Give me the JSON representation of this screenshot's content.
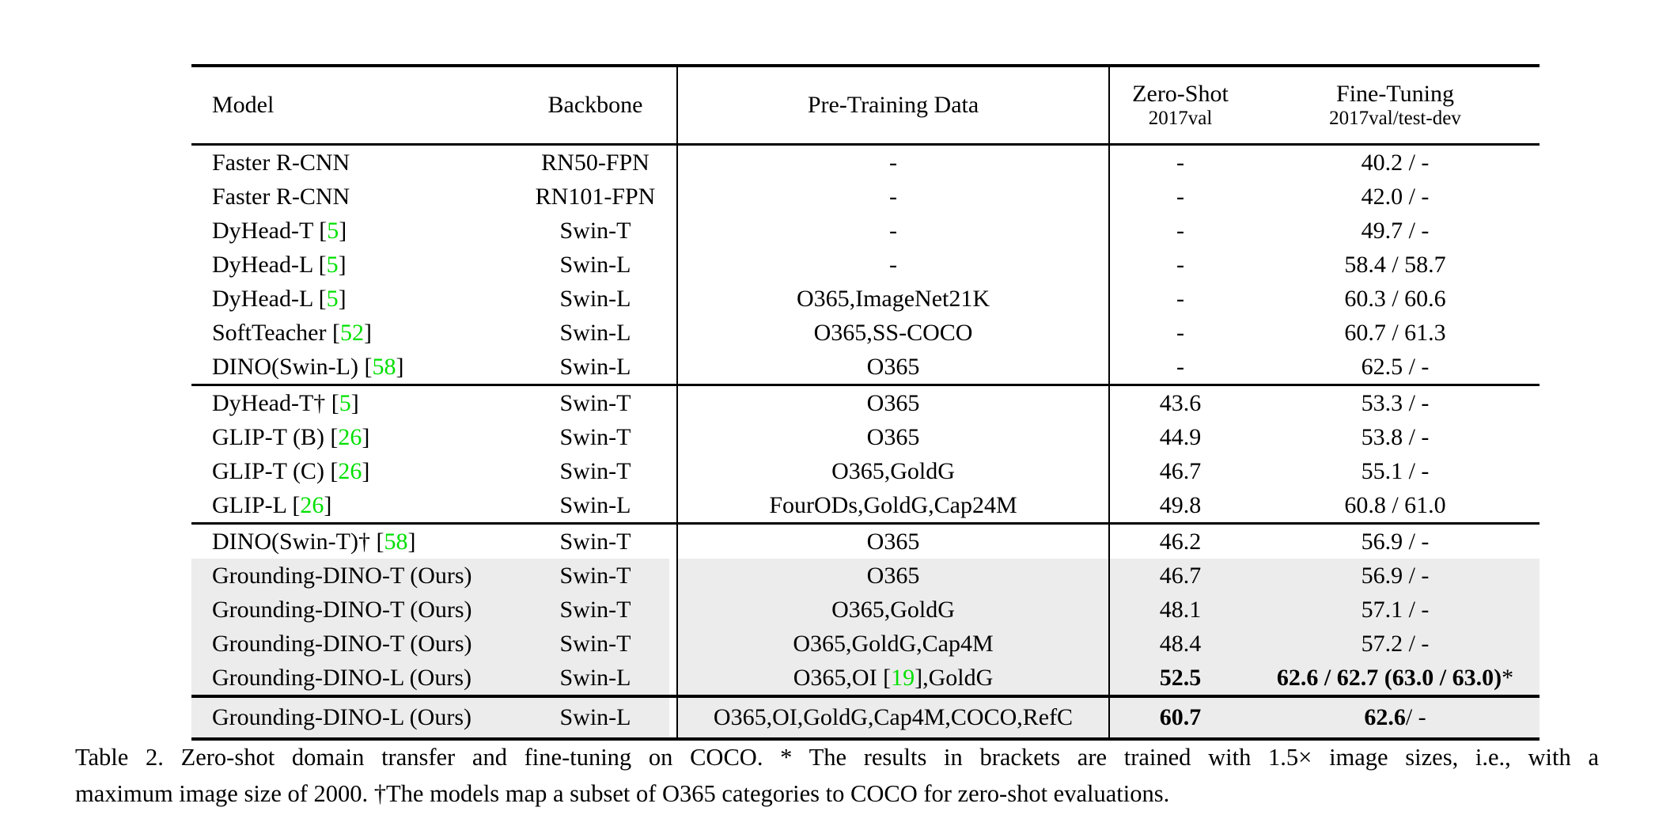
{
  "colors": {
    "cite_green": "#00e000",
    "row_shade": "#ececec",
    "rule_black": "#000000"
  },
  "table": {
    "headers": {
      "model": "Model",
      "backbone": "Backbone",
      "pretrain": "Pre-Training Data",
      "zeroshot_line1": "Zero-Shot",
      "zeroshot_line2": "2017val",
      "finetune_line1": "Fine-Tuning",
      "finetune_line2": "2017val/test-dev"
    },
    "sections": [
      {
        "rows": [
          {
            "model_pre": "Faster R-CNN",
            "model_cite": "",
            "model_post": "",
            "backbone": "RN50-FPN",
            "pre_a": "-",
            "pre_cite": "",
            "pre_b": "",
            "zs": "-",
            "zs_bold": false,
            "ft_bold": "",
            "ft_rest": "40.2 / -",
            "shaded": false
          },
          {
            "model_pre": "Faster R-CNN",
            "model_cite": "",
            "model_post": "",
            "backbone": "RN101-FPN",
            "pre_a": "-",
            "pre_cite": "",
            "pre_b": "",
            "zs": "-",
            "zs_bold": false,
            "ft_bold": "",
            "ft_rest": "42.0 / -",
            "shaded": false
          },
          {
            "model_pre": "DyHead-T [",
            "model_cite": "5",
            "model_post": "]",
            "backbone": "Swin-T",
            "pre_a": "-",
            "pre_cite": "",
            "pre_b": "",
            "zs": "-",
            "zs_bold": false,
            "ft_bold": "",
            "ft_rest": "49.7 / -",
            "shaded": false
          },
          {
            "model_pre": "DyHead-L [",
            "model_cite": "5",
            "model_post": "]",
            "backbone": "Swin-L",
            "pre_a": "-",
            "pre_cite": "",
            "pre_b": "",
            "zs": "-",
            "zs_bold": false,
            "ft_bold": "",
            "ft_rest": "58.4 / 58.7",
            "shaded": false
          },
          {
            "model_pre": "DyHead-L [",
            "model_cite": "5",
            "model_post": "]",
            "backbone": "Swin-L",
            "pre_a": "O365,ImageNet21K",
            "pre_cite": "",
            "pre_b": "",
            "zs": "-",
            "zs_bold": false,
            "ft_bold": "",
            "ft_rest": "60.3 / 60.6",
            "shaded": false
          },
          {
            "model_pre": "SoftTeacher [",
            "model_cite": "52",
            "model_post": "]",
            "backbone": "Swin-L",
            "pre_a": "O365,SS-COCO",
            "pre_cite": "",
            "pre_b": "",
            "zs": "-",
            "zs_bold": false,
            "ft_bold": "",
            "ft_rest": "60.7 / 61.3",
            "shaded": false
          },
          {
            "model_pre": "DINO(Swin-L) [",
            "model_cite": "58",
            "model_post": "]",
            "backbone": "Swin-L",
            "pre_a": "O365",
            "pre_cite": "",
            "pre_b": "",
            "zs": "-",
            "zs_bold": false,
            "ft_bold": "",
            "ft_rest": "62.5 / -",
            "shaded": false
          }
        ]
      },
      {
        "rows": [
          {
            "model_pre": "DyHead-T† [",
            "model_cite": "5",
            "model_post": "]",
            "backbone": "Swin-T",
            "pre_a": "O365",
            "pre_cite": "",
            "pre_b": "",
            "zs": "43.6",
            "zs_bold": false,
            "ft_bold": "",
            "ft_rest": "53.3 / -",
            "shaded": false
          },
          {
            "model_pre": "GLIP-T (B) [",
            "model_cite": "26",
            "model_post": "]",
            "backbone": "Swin-T",
            "pre_a": "O365",
            "pre_cite": "",
            "pre_b": "",
            "zs": "44.9",
            "zs_bold": false,
            "ft_bold": "",
            "ft_rest": "53.8 / -",
            "shaded": false
          },
          {
            "model_pre": "GLIP-T (C) [",
            "model_cite": "26",
            "model_post": "]",
            "backbone": "Swin-T",
            "pre_a": "O365,GoldG",
            "pre_cite": "",
            "pre_b": "",
            "zs": "46.7",
            "zs_bold": false,
            "ft_bold": "",
            "ft_rest": "55.1 / -",
            "shaded": false
          },
          {
            "model_pre": "GLIP-L [",
            "model_cite": "26",
            "model_post": "]",
            "backbone": "Swin-L",
            "pre_a": "FourODs,GoldG,Cap24M",
            "pre_cite": "",
            "pre_b": "",
            "zs": "49.8",
            "zs_bold": false,
            "ft_bold": "",
            "ft_rest": "60.8 / 61.0",
            "shaded": false
          }
        ]
      },
      {
        "rows": [
          {
            "model_pre": "DINO(Swin-T)† [",
            "model_cite": "58",
            "model_post": "]",
            "backbone": "Swin-T",
            "pre_a": "O365",
            "pre_cite": "",
            "pre_b": "",
            "zs": "46.2",
            "zs_bold": false,
            "ft_bold": "",
            "ft_rest": "56.9 / -",
            "shaded": false
          },
          {
            "model_pre": "Grounding-DINO-T (Ours)",
            "model_cite": "",
            "model_post": "",
            "backbone": "Swin-T",
            "pre_a": "O365",
            "pre_cite": "",
            "pre_b": "",
            "zs": "46.7",
            "zs_bold": false,
            "ft_bold": "",
            "ft_rest": "56.9 / -",
            "shaded": true
          },
          {
            "model_pre": "Grounding-DINO-T (Ours)",
            "model_cite": "",
            "model_post": "",
            "backbone": "Swin-T",
            "pre_a": "O365,GoldG",
            "pre_cite": "",
            "pre_b": "",
            "zs": "48.1",
            "zs_bold": false,
            "ft_bold": "",
            "ft_rest": "57.1 / -",
            "shaded": true
          },
          {
            "model_pre": "Grounding-DINO-T (Ours)",
            "model_cite": "",
            "model_post": "",
            "backbone": "Swin-T",
            "pre_a": "O365,GoldG,Cap4M",
            "pre_cite": "",
            "pre_b": "",
            "zs": "48.4",
            "zs_bold": false,
            "ft_bold": "",
            "ft_rest": "57.2 / -",
            "shaded": true
          },
          {
            "model_pre": "Grounding-DINO-L (Ours)",
            "model_cite": "",
            "model_post": "",
            "backbone": "Swin-L",
            "pre_a": "O365,OI [",
            "pre_cite": "19",
            "pre_b": "],GoldG",
            "zs": "52.5",
            "zs_bold": true,
            "ft_bold": "62.6 / 62.7 (63.0 / 63.0)",
            "ft_rest": "*",
            "shaded": true
          }
        ]
      },
      {
        "rows": [
          {
            "model_pre": "Grounding-DINO-L (Ours)",
            "model_cite": "",
            "model_post": "",
            "backbone": "Swin-L",
            "pre_a": "O365,OI,GoldG,Cap4M,COCO,RefC",
            "pre_cite": "",
            "pre_b": "",
            "zs": "60.7",
            "zs_bold": true,
            "ft_bold": "62.6",
            "ft_rest": " / -",
            "shaded": true
          }
        ]
      }
    ]
  },
  "caption": {
    "line1": "Table 2.  Zero-shot domain transfer and fine-tuning on COCO. * The results in brackets are trained with 1.5× image sizes, i.e., with a",
    "line2": "maximum image size of 2000. †The models map a subset of O365 categories to COCO for zero-shot evaluations."
  }
}
